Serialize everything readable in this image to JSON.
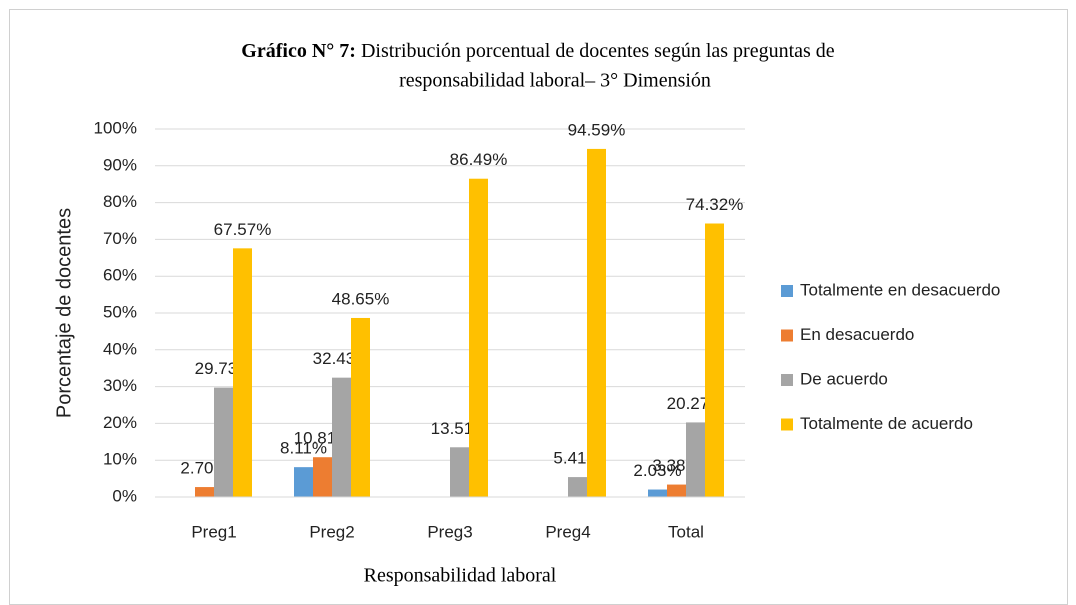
{
  "chart_data": {
    "type": "bar",
    "title_label": "Gráfico N° 7:",
    "title": [
      "Distribución porcentual de docentes según las preguntas de",
      "responsabilidad laboral– 3° Dimensión"
    ],
    "xlabel": "Responsabilidad laboral",
    "ylabel": "Porcentaje de docentes",
    "categories": [
      "Preg1",
      "Preg2",
      "Preg3",
      "Preg4",
      "Total"
    ],
    "series": [
      {
        "name": "Totalmente en desacuerdo",
        "color": "#5b9bd5",
        "values": [
          0,
          8.11,
          0,
          0,
          2.03
        ],
        "value_labels": [
          null,
          "8.11%",
          null,
          null,
          "2.03%"
        ]
      },
      {
        "name": "En desacuerdo",
        "color": "#ed7d31",
        "values": [
          2.7,
          10.81,
          0,
          0,
          3.38
        ],
        "value_labels": [
          "2.70%",
          "10.81%",
          null,
          null,
          "3.38%"
        ]
      },
      {
        "name": "De acuerdo",
        "color": "#a5a5a5",
        "values": [
          29.73,
          32.43,
          13.51,
          5.41,
          20.27
        ],
        "value_labels": [
          "29.73%",
          "32.43%",
          "13.51%",
          "5.41%",
          "20.27%"
        ]
      },
      {
        "name": "Totalmente de acuerdo",
        "color": "#ffc000",
        "values": [
          67.57,
          48.65,
          86.49,
          94.59,
          74.32
        ],
        "value_labels": [
          "67.57%",
          "48.65%",
          "86.49%",
          "94.59%",
          "74.32%"
        ]
      }
    ],
    "ylim": [
      0,
      100
    ],
    "yticks": [
      {
        "value": 0,
        "label": "0%"
      },
      {
        "value": 10,
        "label": "10%"
      },
      {
        "value": 20,
        "label": "20%"
      },
      {
        "value": 30,
        "label": "30%"
      },
      {
        "value": 40,
        "label": "40%"
      },
      {
        "value": 50,
        "label": "50%"
      },
      {
        "value": 60,
        "label": "60%"
      },
      {
        "value": 70,
        "label": "70%"
      },
      {
        "value": 80,
        "label": "80%"
      },
      {
        "value": 90,
        "label": "90%"
      },
      {
        "value": 100,
        "label": "100%"
      }
    ],
    "grid": true,
    "legend": "right"
  }
}
